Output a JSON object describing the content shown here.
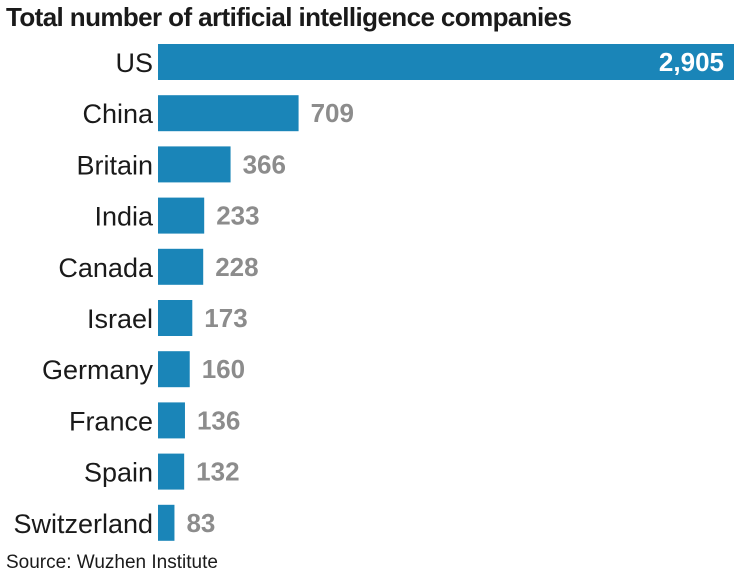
{
  "chart_data": {
    "type": "bar",
    "orientation": "horizontal",
    "title": "Total number of artificial intelligence companies",
    "categories": [
      "US",
      "China",
      "Britain",
      "India",
      "Canada",
      "Israel",
      "Germany",
      "France",
      "Spain",
      "Switzerland"
    ],
    "values": [
      2905,
      709,
      366,
      233,
      228,
      173,
      160,
      136,
      132,
      83
    ],
    "value_labels": [
      "2,905",
      "709",
      "366",
      "233",
      "228",
      "173",
      "160",
      "136",
      "132",
      "83"
    ],
    "xlabel": "",
    "ylabel": "",
    "xlim": [
      0,
      2905
    ],
    "grid": false,
    "legend": "none",
    "source": "Source: Wuzhen Institute"
  },
  "colors": {
    "bar": "#1a85b8",
    "value_label": "#8c8c8c",
    "value_label_inside": "#ffffff",
    "text": "#1a1a1a"
  }
}
